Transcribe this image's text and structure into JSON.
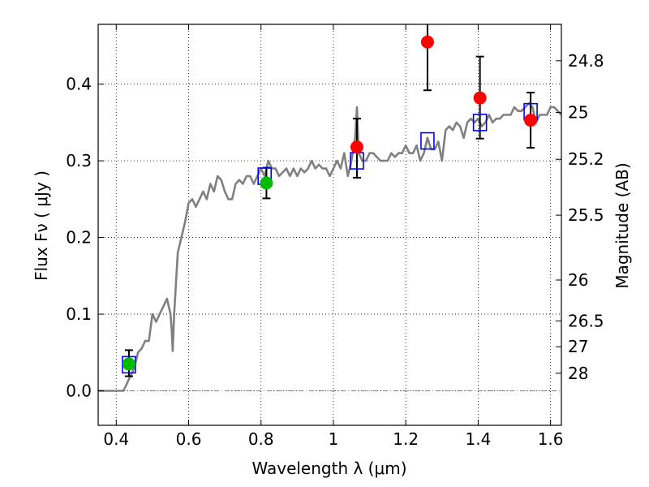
{
  "chart_data": {
    "type": "scatter",
    "xlabel": "Wavelength  λ (μm)",
    "ylabel": "Flux  Fν  ( μJy )",
    "ylabel_right": "Magnitude (AB)",
    "xlim": [
      0.35,
      1.63
    ],
    "ylim": [
      -0.045,
      0.478
    ],
    "grid": true,
    "x_ticks": [
      0.4,
      0.6,
      0.8,
      1.0,
      1.2,
      1.4,
      1.6
    ],
    "x_tick_labels": [
      "0.4",
      "0.6",
      "0.8",
      "1",
      "1.2",
      "1.4",
      "1.6"
    ],
    "y_ticks": [
      0.0,
      0.1,
      0.2,
      0.3,
      0.4
    ],
    "y_tick_labels": [
      "0.0",
      "0.1",
      "0.2",
      "0.3",
      "0.4"
    ],
    "right_ticks": [
      {
        "label": "24.8",
        "flux": 0.4305
      },
      {
        "label": "25",
        "flux": 0.3631
      },
      {
        "label": "25.2",
        "flux": 0.302
      },
      {
        "label": "25.5",
        "flux": 0.2291
      },
      {
        "label": "26",
        "flux": 0.1445
      },
      {
        "label": "26.5",
        "flux": 0.0912
      },
      {
        "label": "27",
        "flux": 0.0575
      },
      {
        "label": "28",
        "flux": 0.0229
      }
    ],
    "colors": {
      "model_line": "#808080",
      "model_boxes": "#0000ff",
      "red_points": "#ff0000",
      "green_points": "#00bb00",
      "errorbars": "#000000",
      "zero_line": "#808080"
    },
    "series": [
      {
        "type": "line",
        "x": [
          0.35,
          0.39,
          0.4,
          0.41,
          0.42,
          0.43,
          0.44,
          0.45,
          0.46,
          0.47,
          0.48,
          0.49,
          0.5,
          0.51,
          0.52,
          0.53,
          0.54,
          0.55,
          0.553,
          0.556,
          0.56,
          0.57,
          0.58,
          0.59,
          0.6,
          0.61,
          0.62,
          0.63,
          0.64,
          0.65,
          0.66,
          0.67,
          0.68,
          0.69,
          0.7,
          0.71,
          0.72,
          0.73,
          0.74,
          0.75,
          0.76,
          0.77,
          0.78,
          0.79,
          0.8,
          0.81,
          0.82,
          0.83,
          0.84,
          0.85,
          0.86,
          0.87,
          0.88,
          0.89,
          0.9,
          0.91,
          0.92,
          0.93,
          0.94,
          0.95,
          0.96,
          0.97,
          0.98,
          0.99,
          1.0,
          1.01,
          1.02,
          1.03,
          1.04,
          1.05,
          1.06,
          1.065,
          1.07,
          1.08,
          1.09,
          1.1,
          1.11,
          1.12,
          1.13,
          1.14,
          1.15,
          1.16,
          1.17,
          1.18,
          1.19,
          1.2,
          1.21,
          1.22,
          1.23,
          1.24,
          1.25,
          1.26,
          1.27,
          1.28,
          1.29,
          1.3,
          1.31,
          1.32,
          1.33,
          1.34,
          1.35,
          1.36,
          1.37,
          1.38,
          1.39,
          1.4,
          1.41,
          1.42,
          1.43,
          1.44,
          1.45,
          1.46,
          1.47,
          1.48,
          1.49,
          1.5,
          1.51,
          1.52,
          1.53,
          1.54,
          1.55,
          1.56,
          1.57,
          1.58,
          1.59,
          1.6,
          1.61,
          1.62,
          1.63
        ],
        "y": [
          0.0,
          0.0,
          0.0,
          0.0,
          0.0,
          0.01,
          0.02,
          0.03,
          0.05,
          0.055,
          0.065,
          0.065,
          0.1,
          0.09,
          0.1,
          0.11,
          0.12,
          0.1,
          0.08,
          0.052,
          0.1,
          0.18,
          0.2,
          0.22,
          0.245,
          0.25,
          0.24,
          0.25,
          0.26,
          0.25,
          0.27,
          0.26,
          0.28,
          0.275,
          0.26,
          0.25,
          0.25,
          0.27,
          0.275,
          0.27,
          0.28,
          0.28,
          0.27,
          0.28,
          0.29,
          0.28,
          0.3,
          0.29,
          0.29,
          0.28,
          0.285,
          0.29,
          0.28,
          0.29,
          0.28,
          0.29,
          0.285,
          0.29,
          0.3,
          0.29,
          0.295,
          0.29,
          0.29,
          0.28,
          0.29,
          0.3,
          0.29,
          0.31,
          0.28,
          0.3,
          0.33,
          0.37,
          0.31,
          0.3,
          0.3,
          0.31,
          0.31,
          0.305,
          0.3,
          0.3,
          0.3,
          0.31,
          0.305,
          0.31,
          0.31,
          0.32,
          0.31,
          0.31,
          0.32,
          0.3,
          0.31,
          0.33,
          0.315,
          0.315,
          0.325,
          0.3,
          0.34,
          0.345,
          0.34,
          0.35,
          0.345,
          0.33,
          0.35,
          0.355,
          0.35,
          0.355,
          0.345,
          0.35,
          0.36,
          0.35,
          0.355,
          0.355,
          0.36,
          0.36,
          0.36,
          0.37,
          0.365,
          0.365,
          0.37,
          0.375,
          0.37,
          0.35,
          0.36,
          0.36,
          0.36,
          0.37,
          0.37,
          0.365,
          0.36
        ]
      },
      {
        "type": "boxes",
        "x": [
          0.435,
          0.81,
          1.065,
          1.26,
          1.405,
          1.545
        ],
        "y": [
          0.034,
          0.28,
          0.3,
          0.326,
          0.35,
          0.364
        ]
      },
      {
        "type": "points",
        "x": [
          1.065,
          1.26,
          1.405,
          1.545
        ],
        "y": [
          0.318,
          0.455,
          0.382,
          0.353
        ],
        "yerr_low": [
          0.04,
          0.063,
          0.053,
          0.036
        ],
        "yerr_high": [
          0.037,
          0.045,
          0.054,
          0.036
        ]
      },
      {
        "type": "points",
        "x": [
          0.435,
          0.815
        ],
        "y": [
          0.035,
          0.271
        ],
        "yerr_low": [
          0.016,
          0.02
        ],
        "yerr_high": [
          0.018,
          0.02
        ]
      }
    ]
  }
}
